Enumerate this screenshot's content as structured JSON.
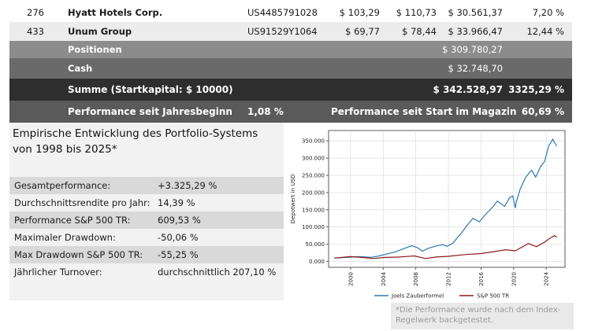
{
  "holdings": [
    {
      "nr": "276",
      "name": "Hyatt Hotels Corp.",
      "isin": "US4485791028",
      "buy": "$ 103,29",
      "price": "$ 110,73",
      "value": "$ 30.561,37",
      "perf": "7,20 %"
    },
    {
      "nr": "433",
      "name": "Unum Group",
      "isin": "US91529Y1064",
      "buy": "$ 69,77",
      "price": "$ 78,44",
      "value": "$ 33.966,47",
      "perf": "12,44 %"
    }
  ],
  "totals": {
    "positionen_label": "Positionen",
    "positionen_value": "$ 309.780,27",
    "cash_label": "Cash",
    "cash_value": "$ 32.748,70",
    "summe_label": "Summe (Startkapital: $ 10000)",
    "summe_value": "$ 342.528,97",
    "summe_perf": "3325,29 %"
  },
  "performance": {
    "ytd_label": "Performance seit Jahresbeginn",
    "ytd_value": "1,08 %",
    "start_label": "Performance seit Start im Magazin",
    "start_value": "60,69 %"
  },
  "stats": {
    "title": "Empirische Entwicklung des Portfolio-Systems von 1998 bis 2025*",
    "rows": [
      {
        "label": "Gesamtperformance:",
        "value": "+3.325,29 %"
      },
      {
        "label": "Durchschnittsrendite pro Jahr:",
        "value": "14,39 %"
      },
      {
        "label": "Performance S&P 500 TR:",
        "value": "609,53 %"
      },
      {
        "label": "Maximaler Drawdown:",
        "value": "-50,06 %"
      },
      {
        "label": "Max Drawdown S&P 500 TR:",
        "value": "-55,25 %"
      },
      {
        "label": "Jährlicher Turnover:",
        "value": "durchschnittlich 207,10 %"
      }
    ]
  },
  "footnote": "*Die Performance wurde nach dem Index-Regelwerk backgetestet.",
  "colors": {
    "series1": "#2a7ab5",
    "series2": "#8b1a1a"
  },
  "chart_data": {
    "type": "line",
    "ylabel": "Depotwert in USD",
    "xlabel": "",
    "xlim": [
      1997.3,
      2026.3
    ],
    "ylim": [
      -17000,
      380000
    ],
    "xticks": [
      2000,
      2004,
      2008,
      2012,
      2016,
      2020,
      2024
    ],
    "yticks": [
      0,
      50000,
      100000,
      150000,
      200000,
      250000,
      300000,
      350000
    ],
    "ytick_labels": [
      "0.000",
      "50.000",
      "100.000",
      "150.000",
      "200.000",
      "250.000",
      "300.000",
      "350.000"
    ],
    "legend_position": "bottom",
    "grid": true,
    "series": [
      {
        "name": "Joels Zauberformel",
        "x": [
          1998,
          1999,
          2000,
          2000.8,
          2001.5,
          2002.5,
          2003.5,
          2004.5,
          2005.5,
          2006.5,
          2007.5,
          2008.2,
          2008.8,
          2009.5,
          2010.5,
          2011.3,
          2011.8,
          2012.5,
          2013.5,
          2014.3,
          2015,
          2015.8,
          2016.5,
          2017.5,
          2018,
          2018.9,
          2019.5,
          2019.9,
          2020.2,
          2020.3,
          2020.8,
          2021.5,
          2022.2,
          2022.7,
          2023.3,
          2023.8,
          2024.3,
          2024.8,
          2025.0,
          2025.3
        ],
        "y": [
          10000,
          11000,
          12500,
          14000,
          13500,
          12000,
          16000,
          22000,
          28000,
          37000,
          46000,
          40000,
          30000,
          38000,
          45000,
          49000,
          44000,
          52000,
          80000,
          105000,
          125000,
          115000,
          135000,
          160000,
          175000,
          160000,
          185000,
          190000,
          155000,
          170000,
          210000,
          245000,
          265000,
          245000,
          275000,
          290000,
          335000,
          355000,
          345000,
          335000
        ]
      },
      {
        "name": "S&P 500 TR",
        "x": [
          1998,
          2000,
          2001.5,
          2002.8,
          2004,
          2006,
          2007.8,
          2009.2,
          2010.5,
          2012,
          2014,
          2016,
          2018,
          2019,
          2020.2,
          2021.8,
          2022.8,
          2023.8,
          2024.5,
          2025.0,
          2025.3
        ],
        "y": [
          10000,
          14000,
          11500,
          8500,
          11500,
          13000,
          16000,
          8500,
          13000,
          15000,
          20000,
          23000,
          30000,
          34000,
          31000,
          52000,
          43000,
          56000,
          68000,
          75000,
          70000
        ]
      }
    ]
  }
}
